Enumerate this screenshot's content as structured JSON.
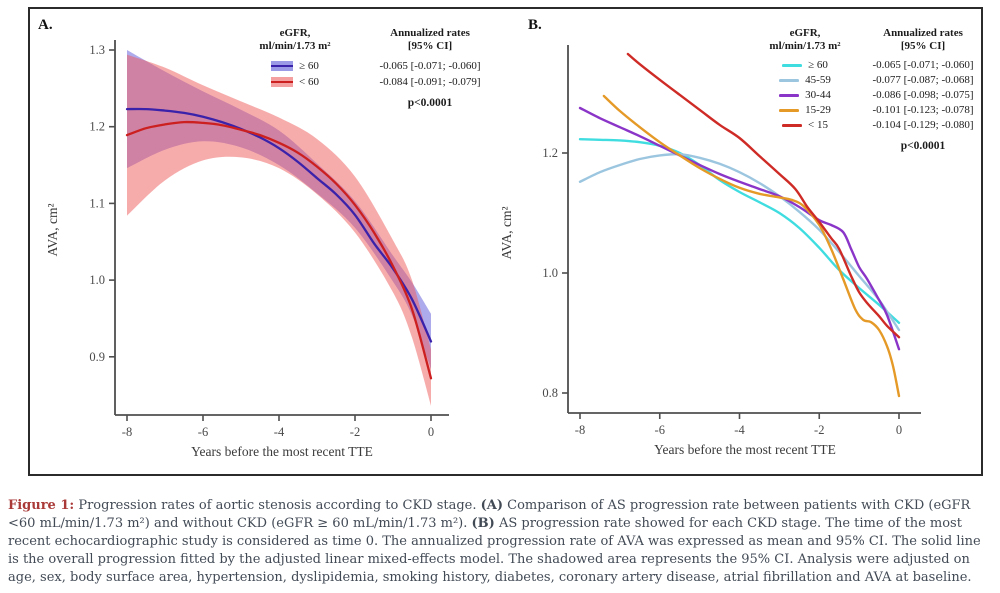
{
  "page": {
    "background": "#ffffff",
    "frame_border": "#2b2b2b"
  },
  "caption": {
    "label_color": "#a93a38",
    "text_color": "#424a55",
    "segments": [
      {
        "text": "Figure 1:",
        "style": "figlabel"
      },
      {
        "text": " Progression rates of aortic stenosis according to CKD stage. ",
        "style": ""
      },
      {
        "text": "(A)",
        "style": "bold"
      },
      {
        "text": " Comparison of AS progression rate between patients with CKD (eGFR <60 mL/min/1.73 m²) and without CKD (eGFR ≥ 60 mL/min/1.73 m²). ",
        "style": ""
      },
      {
        "text": "(B)",
        "style": "bold"
      },
      {
        "text": " AS progression rate showed for each CKD stage. The time of the most recent echocardiographic study is considered as time 0. The annualized progression rate of AVA was expressed as mean and 95% CI. The solid line is the overall progression fitted by the adjusted linear mixed-effects model. The shadowed area represents the 95% CI. Analysis were adjusted on age, sex, body surface area, hypertension, dyslipidemia, smoking history, diabetes, coronary artery disease, atrial fibrillation and AVA at baseline.",
        "style": ""
      }
    ]
  },
  "chart_data": [
    {
      "type": "line",
      "panel_label": "A.",
      "xlabel": "Years before the most recent TTE",
      "ylabel": "AVA, cm²",
      "xticks": [
        -8,
        -6,
        -4,
        -2,
        0
      ],
      "yticks": [
        1.3,
        1.2,
        1.1,
        1.0,
        0.9
      ],
      "xlim": [
        -8.3,
        0.45
      ],
      "ylim": [
        0.82,
        1.32
      ],
      "grid": false,
      "axis_color": "#4f4f4f",
      "tick_label_color": "#4a4a4a",
      "legend": {
        "header_left_1": "eGFR,",
        "header_left_2": "ml/min/1.73 m²",
        "header_right_1": "Annualized rates",
        "header_right_2": "[95% CI]",
        "rows": [
          {
            "label": "≥ 60",
            "value": "-0.065 [-0.071; -0.060]",
            "line_color": "#3a22aa",
            "band_color": "#9a9ae6"
          },
          {
            "label": "< 60",
            "value": "-0.084 [-0.091; -0.079]",
            "line_color": "#cc2020",
            "band_color": "#f5a0a0"
          }
        ],
        "p_value": "p<0.0001"
      },
      "series": [
        {
          "name": "≥ 60",
          "color": "#3a22aa",
          "band_fill": "rgba(85,80,215,0.48)",
          "line": [
            [
              -8,
              1.223
            ],
            [
              -7.5,
              1.223
            ],
            [
              -7,
              1.221
            ],
            [
              -6.5,
              1.218
            ],
            [
              -6,
              1.213
            ],
            [
              -5.5,
              1.206
            ],
            [
              -5,
              1.197
            ],
            [
              -4.5,
              1.186
            ],
            [
              -4,
              1.172
            ],
            [
              -3.5,
              1.154
            ],
            [
              -3,
              1.133
            ],
            [
              -2.5,
              1.112
            ],
            [
              -2,
              1.085
            ],
            [
              -1.5,
              1.048
            ],
            [
              -1,
              1.015
            ],
            [
              -0.5,
              0.975
            ],
            [
              0,
              0.92
            ]
          ],
          "upper": [
            [
              -8,
              1.3
            ],
            [
              -7,
              1.272
            ],
            [
              -6,
              1.246
            ],
            [
              -5,
              1.222
            ],
            [
              -4,
              1.195
            ],
            [
              -3,
              1.152
            ],
            [
              -2,
              1.103
            ],
            [
              -1,
              1.032
            ],
            [
              -0.5,
              0.997
            ],
            [
              0,
              0.956
            ]
          ],
          "lower": [
            [
              -8,
              1.146
            ],
            [
              -7,
              1.17
            ],
            [
              -6,
              1.181
            ],
            [
              -5,
              1.173
            ],
            [
              -4,
              1.15
            ],
            [
              -3,
              1.113
            ],
            [
              -2,
              1.068
            ],
            [
              -1,
              0.998
            ],
            [
              -0.5,
              0.954
            ],
            [
              0,
              0.884
            ]
          ]
        },
        {
          "name": "< 60",
          "color": "#cc2020",
          "band_fill": "rgba(240,90,90,0.50)",
          "line": [
            [
              -8,
              1.189
            ],
            [
              -7.5,
              1.198
            ],
            [
              -7,
              1.203
            ],
            [
              -6.5,
              1.206
            ],
            [
              -6,
              1.205
            ],
            [
              -5.5,
              1.202
            ],
            [
              -5,
              1.196
            ],
            [
              -4.5,
              1.189
            ],
            [
              -4,
              1.179
            ],
            [
              -3.5,
              1.166
            ],
            [
              -3,
              1.148
            ],
            [
              -2.5,
              1.126
            ],
            [
              -2,
              1.098
            ],
            [
              -1.5,
              1.062
            ],
            [
              -1,
              1.018
            ],
            [
              -0.5,
              0.962
            ],
            [
              0,
              0.872
            ]
          ],
          "upper": [
            [
              -8,
              1.294
            ],
            [
              -7,
              1.277
            ],
            [
              -6,
              1.254
            ],
            [
              -5,
              1.233
            ],
            [
              -4,
              1.212
            ],
            [
              -3,
              1.184
            ],
            [
              -2,
              1.135
            ],
            [
              -1,
              1.052
            ],
            [
              -0.5,
              1.0
            ],
            [
              0,
              0.91
            ]
          ],
          "lower": [
            [
              -8,
              1.084
            ],
            [
              -7,
              1.13
            ],
            [
              -6,
              1.156
            ],
            [
              -5,
              1.16
            ],
            [
              -4,
              1.146
            ],
            [
              -3,
              1.112
            ],
            [
              -2,
              1.062
            ],
            [
              -1,
              0.984
            ],
            [
              -0.5,
              0.925
            ],
            [
              0,
              0.836
            ]
          ]
        }
      ]
    },
    {
      "type": "line",
      "panel_label": "B.",
      "xlabel": "Years before the most recent TTE",
      "ylabel": "AVA, cm²",
      "xticks": [
        -8,
        -6,
        -4,
        -2,
        0
      ],
      "yticks": [
        1.2,
        1.0,
        0.8
      ],
      "xlim": [
        -8.3,
        0.55
      ],
      "ylim": [
        0.765,
        1.38
      ],
      "grid": false,
      "axis_color": "#4f4f4f",
      "tick_label_color": "#4a4a4a",
      "legend": {
        "header_left_1": "eGFR,",
        "header_left_2": "ml/min/1.73 m²",
        "header_right_1": "Annualized rates",
        "header_right_2": "[95% CI]",
        "rows": [
          {
            "label": "≥ 60",
            "value": "-0.065 [-0.071; -0.060]",
            "line_color": "#40dde0"
          },
          {
            "label": "45-59",
            "value": "-0.077 [-0.087; -0.068]",
            "line_color": "#9cc6e0"
          },
          {
            "label": "30-44",
            "value": "-0.086 [-0.098; -0.075]",
            "line_color": "#8b35c8"
          },
          {
            "label": "15-29",
            "value": "-0.101 [-0.123; -0.078]",
            "line_color": "#e59a28"
          },
          {
            "label": "< 15",
            "value": "-0.104 [-0.129; -0.080]",
            "line_color": "#cf2b26"
          }
        ],
        "p_value": "p<0.0001"
      },
      "series": [
        {
          "name": "≥ 60",
          "color": "#40dde0",
          "line": [
            [
              -8,
              1.223
            ],
            [
              -7.5,
              1.222
            ],
            [
              -7,
              1.221
            ],
            [
              -6.5,
              1.218
            ],
            [
              -6,
              1.212
            ],
            [
              -5.5,
              1.2
            ],
            [
              -5,
              1.18
            ],
            [
              -4.5,
              1.155
            ],
            [
              -4,
              1.135
            ],
            [
              -3.5,
              1.118
            ],
            [
              -3,
              1.1
            ],
            [
              -2.5,
              1.075
            ],
            [
              -2,
              1.042
            ],
            [
              -1.5,
              1.005
            ],
            [
              -1,
              0.975
            ],
            [
              -0.5,
              0.947
            ],
            [
              0,
              0.917
            ]
          ]
        },
        {
          "name": "45-59",
          "color": "#9cc6e0",
          "line": [
            [
              -8,
              1.152
            ],
            [
              -7.5,
              1.168
            ],
            [
              -7,
              1.18
            ],
            [
              -6.5,
              1.19
            ],
            [
              -6,
              1.196
            ],
            [
              -5.5,
              1.198
            ],
            [
              -5,
              1.192
            ],
            [
              -4.5,
              1.182
            ],
            [
              -4,
              1.168
            ],
            [
              -3.5,
              1.15
            ],
            [
              -3,
              1.128
            ],
            [
              -2.5,
              1.102
            ],
            [
              -2,
              1.072
            ],
            [
              -1.5,
              1.035
            ],
            [
              -1,
              0.995
            ],
            [
              -0.5,
              0.955
            ],
            [
              0,
              0.905
            ]
          ]
        },
        {
          "name": "30-44",
          "color": "#8b35c8",
          "line": [
            [
              -8,
              1.275
            ],
            [
              -7.5,
              1.258
            ],
            [
              -7,
              1.243
            ],
            [
              -6.5,
              1.228
            ],
            [
              -6,
              1.212
            ],
            [
              -5.5,
              1.196
            ],
            [
              -5,
              1.18
            ],
            [
              -4.5,
              1.165
            ],
            [
              -4,
              1.152
            ],
            [
              -3.5,
              1.14
            ],
            [
              -3,
              1.128
            ],
            [
              -2.5,
              1.11
            ],
            [
              -2,
              1.088
            ],
            [
              -1.7,
              1.08
            ],
            [
              -1.4,
              1.068
            ],
            [
              -1.2,
              1.04
            ],
            [
              -1,
              1.01
            ],
            [
              -0.8,
              0.99
            ],
            [
              -0.5,
              0.955
            ],
            [
              -0.3,
              0.93
            ],
            [
              0,
              0.873
            ]
          ]
        },
        {
          "name": "15-29",
          "color": "#e59a28",
          "line": [
            [
              -7.4,
              1.295
            ],
            [
              -7,
              1.27
            ],
            [
              -6.5,
              1.243
            ],
            [
              -6,
              1.218
            ],
            [
              -5.5,
              1.196
            ],
            [
              -5,
              1.175
            ],
            [
              -4.5,
              1.157
            ],
            [
              -4,
              1.142
            ],
            [
              -3.5,
              1.132
            ],
            [
              -3,
              1.126
            ],
            [
              -2.7,
              1.122
            ],
            [
              -2.4,
              1.112
            ],
            [
              -2,
              1.08
            ],
            [
              -1.7,
              1.04
            ],
            [
              -1.4,
              0.99
            ],
            [
              -1.1,
              0.94
            ],
            [
              -0.9,
              0.922
            ],
            [
              -0.7,
              0.918
            ],
            [
              -0.5,
              0.905
            ],
            [
              -0.3,
              0.878
            ],
            [
              -0.15,
              0.845
            ],
            [
              0,
              0.795
            ]
          ]
        },
        {
          "name": "< 15",
          "color": "#cf2b26",
          "line": [
            [
              -6.8,
              1.365
            ],
            [
              -6.5,
              1.348
            ],
            [
              -6,
              1.322
            ],
            [
              -5.5,
              1.297
            ],
            [
              -5,
              1.272
            ],
            [
              -4.5,
              1.247
            ],
            [
              -4,
              1.225
            ],
            [
              -3.5,
              1.195
            ],
            [
              -3,
              1.165
            ],
            [
              -2.6,
              1.14
            ],
            [
              -2.3,
              1.11
            ],
            [
              -2,
              1.085
            ],
            [
              -1.7,
              1.058
            ],
            [
              -1.5,
              1.04
            ],
            [
              -1.2,
              0.995
            ],
            [
              -1,
              0.968
            ],
            [
              -0.8,
              0.95
            ],
            [
              -0.5,
              0.928
            ],
            [
              -0.3,
              0.912
            ],
            [
              0,
              0.893
            ]
          ]
        }
      ]
    }
  ]
}
